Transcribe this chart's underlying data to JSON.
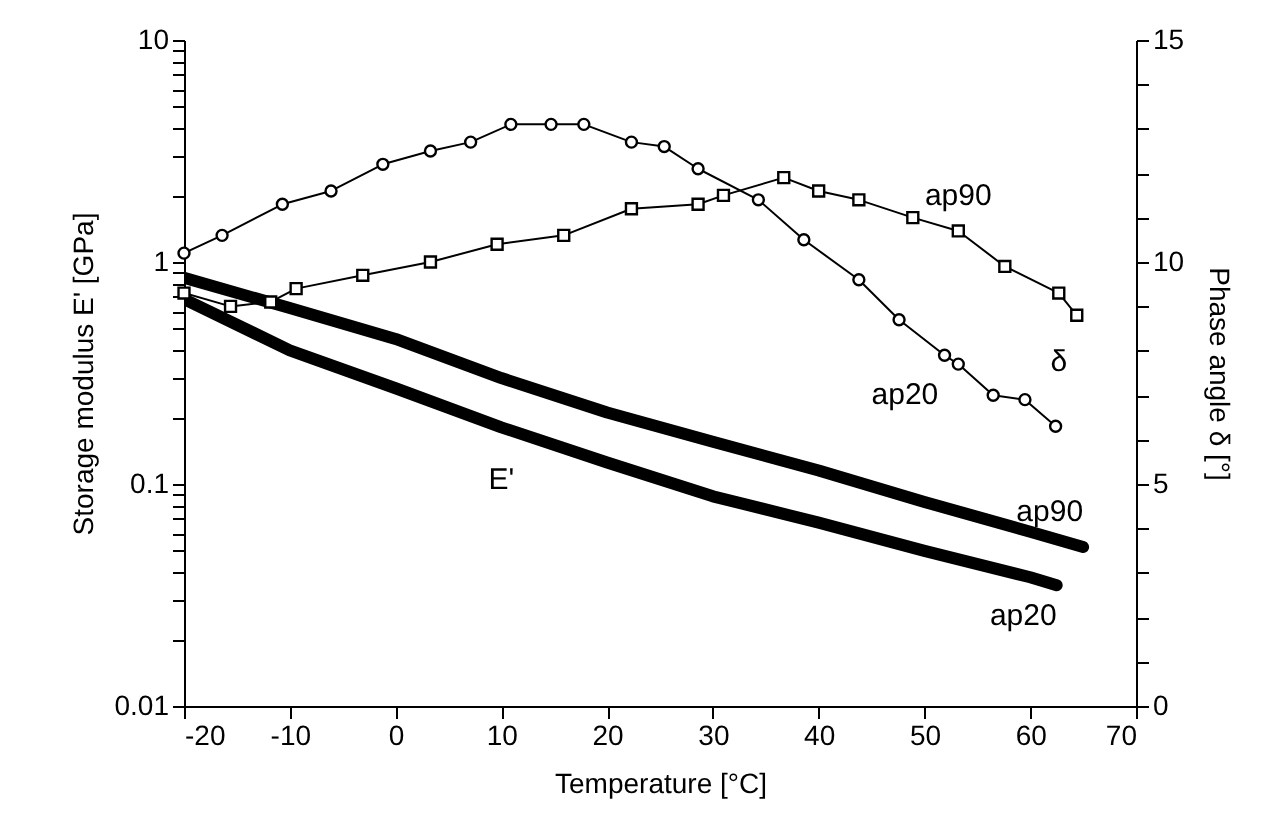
{
  "chart_data": {
    "type": "line",
    "xlabel": "Temperature  [°C]",
    "ylabel": "Storage modulus E' [GPa]",
    "y2label": "Phase angle δ [°]",
    "xlim": [
      -20,
      70
    ],
    "xticks": [
      -20,
      -10,
      0,
      10,
      20,
      30,
      40,
      50,
      60,
      70
    ],
    "ylim": [
      0.01,
      10
    ],
    "yticks": [
      0.01,
      {
        "value": 0.02,
        "label": null
      },
      {
        "value": 0.03,
        "label": null
      },
      {
        "value": 0.04,
        "label": null
      },
      {
        "value": 0.05,
        "label": null
      },
      {
        "value": 0.06,
        "label": null
      },
      {
        "value": 0.07,
        "label": null
      },
      {
        "value": 0.08,
        "label": null
      },
      {
        "value": 0.09,
        "label": null
      },
      0.1,
      {
        "value": 0.2,
        "label": null
      },
      {
        "value": 0.3,
        "label": null
      },
      {
        "value": 0.4,
        "label": null
      },
      {
        "value": 0.5,
        "label": null
      },
      {
        "value": 0.6,
        "label": null
      },
      {
        "value": 0.7,
        "label": null
      },
      {
        "value": 0.8,
        "label": null
      },
      {
        "value": 0.9,
        "label": null
      },
      1,
      {
        "value": 2,
        "label": null
      },
      {
        "value": 3,
        "label": null
      },
      {
        "value": 4,
        "label": null
      },
      {
        "value": 5,
        "label": null
      },
      {
        "value": 6,
        "label": null
      },
      {
        "value": 7,
        "label": null
      },
      {
        "value": 8,
        "label": null
      },
      {
        "value": 9,
        "label": null
      },
      10
    ],
    "y2lim": [
      0,
      15
    ],
    "y2ticks": [
      0,
      {
        "value": 1,
        "label": null
      },
      {
        "value": 2,
        "label": null
      },
      {
        "value": 3,
        "label": null
      },
      {
        "value": 4,
        "label": null
      },
      5,
      {
        "value": 6,
        "label": null
      },
      {
        "value": 7,
        "label": null
      },
      {
        "value": 8,
        "label": null
      },
      {
        "value": 9,
        "label": null
      },
      10,
      {
        "value": 11,
        "label": null
      },
      {
        "value": 12,
        "label": null
      },
      {
        "value": 13,
        "label": null
      },
      {
        "value": 14,
        "label": null
      },
      15
    ],
    "log": "y",
    "grid": false,
    "line_style": "solid",
    "series": [
      {
        "name": "ap90",
        "color": "#000000",
        "marker": "none",
        "x": [
          -20,
          -10,
          0,
          10,
          20,
          30,
          40,
          50,
          60,
          65
        ],
        "values": [
          0.85,
          0.62,
          0.45,
          0.3,
          0.21,
          0.155,
          0.115,
          0.083,
          0.061,
          0.052
        ]
      },
      {
        "name": "ap20",
        "color": "#000000",
        "marker": "none",
        "x": [
          -20,
          -10,
          0,
          10,
          20,
          30,
          40,
          50,
          60,
          62.5
        ],
        "values": [
          0.68,
          0.4,
          0.27,
          0.18,
          0.125,
          0.088,
          0.067,
          0.05,
          0.038,
          0.035
        ]
      },
      {
        "name": "ap90",
        "color": "#000000",
        "marker": "square",
        "axis": "y2",
        "x": [
          -20,
          -15.6,
          -11.8,
          -9.4,
          -3.1,
          3.3,
          9.6,
          15.9,
          22.3,
          28.6,
          31,
          36.7,
          40,
          43.8,
          48.9,
          53.2,
          57.6,
          62.7,
          64.4
        ],
        "values": [
          9.3,
          9.0,
          9.1,
          9.4,
          9.7,
          10.0,
          10.4,
          10.6,
          11.2,
          11.3,
          11.5,
          11.9,
          11.6,
          11.4,
          11.0,
          10.7,
          9.9,
          9.3,
          8.8
        ]
      },
      {
        "name": "ap20",
        "color": "#000000",
        "marker": "circle",
        "axis": "y2",
        "x": [
          -20,
          -16.4,
          -10.7,
          -6.1,
          -1.2,
          3.3,
          7.1,
          10.9,
          14.7,
          17.8,
          22.3,
          25.4,
          28.6,
          34.3,
          38.6,
          43.8,
          47.6,
          51.9,
          53.2,
          56.5,
          59.5,
          62.4
        ],
        "values": [
          10.2,
          10.6,
          11.3,
          11.6,
          12.2,
          12.5,
          12.7,
          13.1,
          13.1,
          13.1,
          12.7,
          12.6,
          12.1,
          11.4,
          10.5,
          9.6,
          8.7,
          7.9,
          7.7,
          7.0,
          6.9,
          6.3
        ]
      }
    ],
    "annotations": [
      "E'",
      "δ"
    ]
  }
}
